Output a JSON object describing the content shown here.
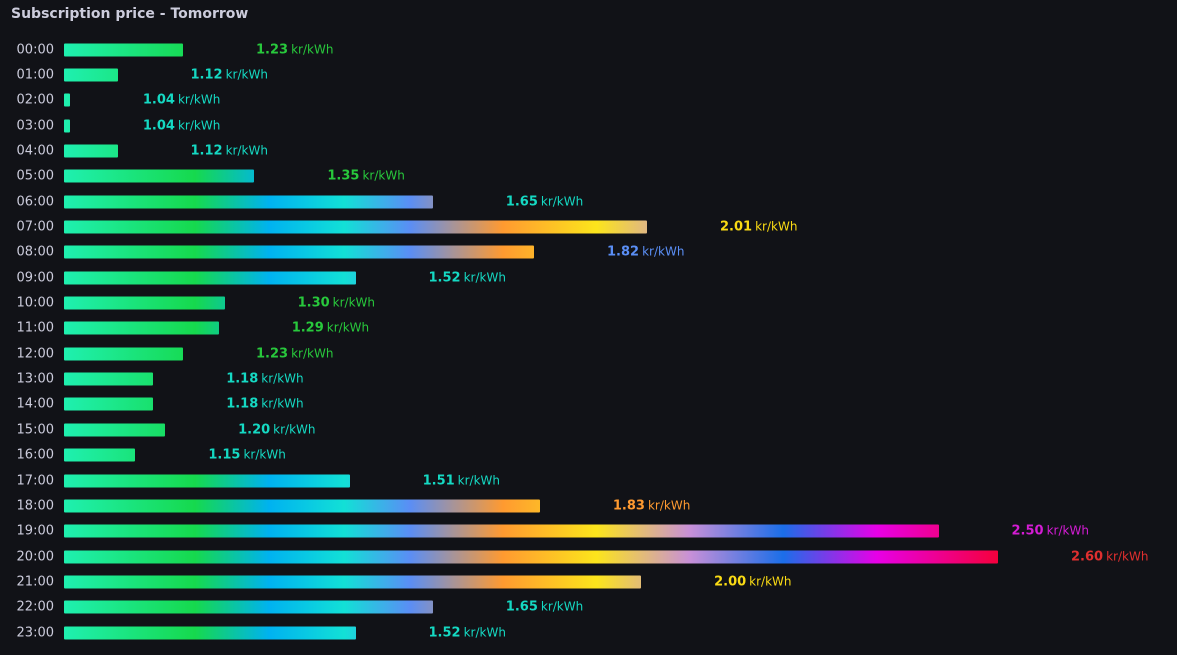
{
  "panel": {
    "title": "Subscription price - Tomorrow"
  },
  "chart_data": {
    "type": "bar",
    "orientation": "horizontal",
    "title": "Subscription price - Tomorrow",
    "unit": "kr/kWh",
    "min": 1.03,
    "max": 2.6,
    "categories": [
      "00:00",
      "01:00",
      "02:00",
      "03:00",
      "04:00",
      "05:00",
      "06:00",
      "07:00",
      "08:00",
      "09:00",
      "10:00",
      "11:00",
      "12:00",
      "13:00",
      "14:00",
      "15:00",
      "16:00",
      "17:00",
      "18:00",
      "19:00",
      "20:00",
      "21:00",
      "22:00",
      "23:00"
    ],
    "values": [
      1.23,
      1.12,
      1.04,
      1.04,
      1.12,
      1.35,
      1.65,
      2.01,
      1.82,
      1.52,
      1.3,
      1.29,
      1.23,
      1.18,
      1.18,
      1.2,
      1.15,
      1.51,
      1.83,
      2.5,
      2.6,
      2.0,
      1.65,
      1.52
    ],
    "value_labels": [
      "1.23",
      "1.12",
      "1.04",
      "1.04",
      "1.12",
      "1.35",
      "1.65",
      "2.01",
      "1.82",
      "1.52",
      "1.30",
      "1.29",
      "1.23",
      "1.18",
      "1.18",
      "1.20",
      "1.15",
      "1.51",
      "1.83",
      "2.50",
      "2.60",
      "2.00",
      "1.65",
      "1.52"
    ],
    "color_scale": [
      {
        "stop": 0.0,
        "color": "#1ff0b0"
      },
      {
        "stop": 0.14,
        "color": "#16d94d"
      },
      {
        "stop": 0.22,
        "color": "#00b2f0"
      },
      {
        "stop": 0.3,
        "color": "#12e0d6"
      },
      {
        "stop": 0.37,
        "color": "#5a8ef5"
      },
      {
        "stop": 0.47,
        "color": "#ff9a30"
      },
      {
        "stop": 0.57,
        "color": "#fce51c"
      },
      {
        "stop": 0.67,
        "color": "#c890d8"
      },
      {
        "stop": 0.77,
        "color": "#1b6ee8"
      },
      {
        "stop": 0.87,
        "color": "#e700e7"
      },
      {
        "stop": 1.0,
        "color": "#f5003c"
      }
    ],
    "label_colors": [
      {
        "max": 1.2,
        "color": "#15d9c3"
      },
      {
        "max": 1.4,
        "color": "#28c83c"
      },
      {
        "max": 1.7,
        "color": "#15d9c3"
      },
      {
        "max": 1.825,
        "color": "#5a8ef5"
      },
      {
        "max": 1.95,
        "color": "#ff9a30"
      },
      {
        "max": 2.3,
        "color": "#fadb14"
      },
      {
        "max": 2.55,
        "color": "#d41cd4"
      },
      {
        "max": 9.99,
        "color": "#e02f2f"
      }
    ]
  }
}
